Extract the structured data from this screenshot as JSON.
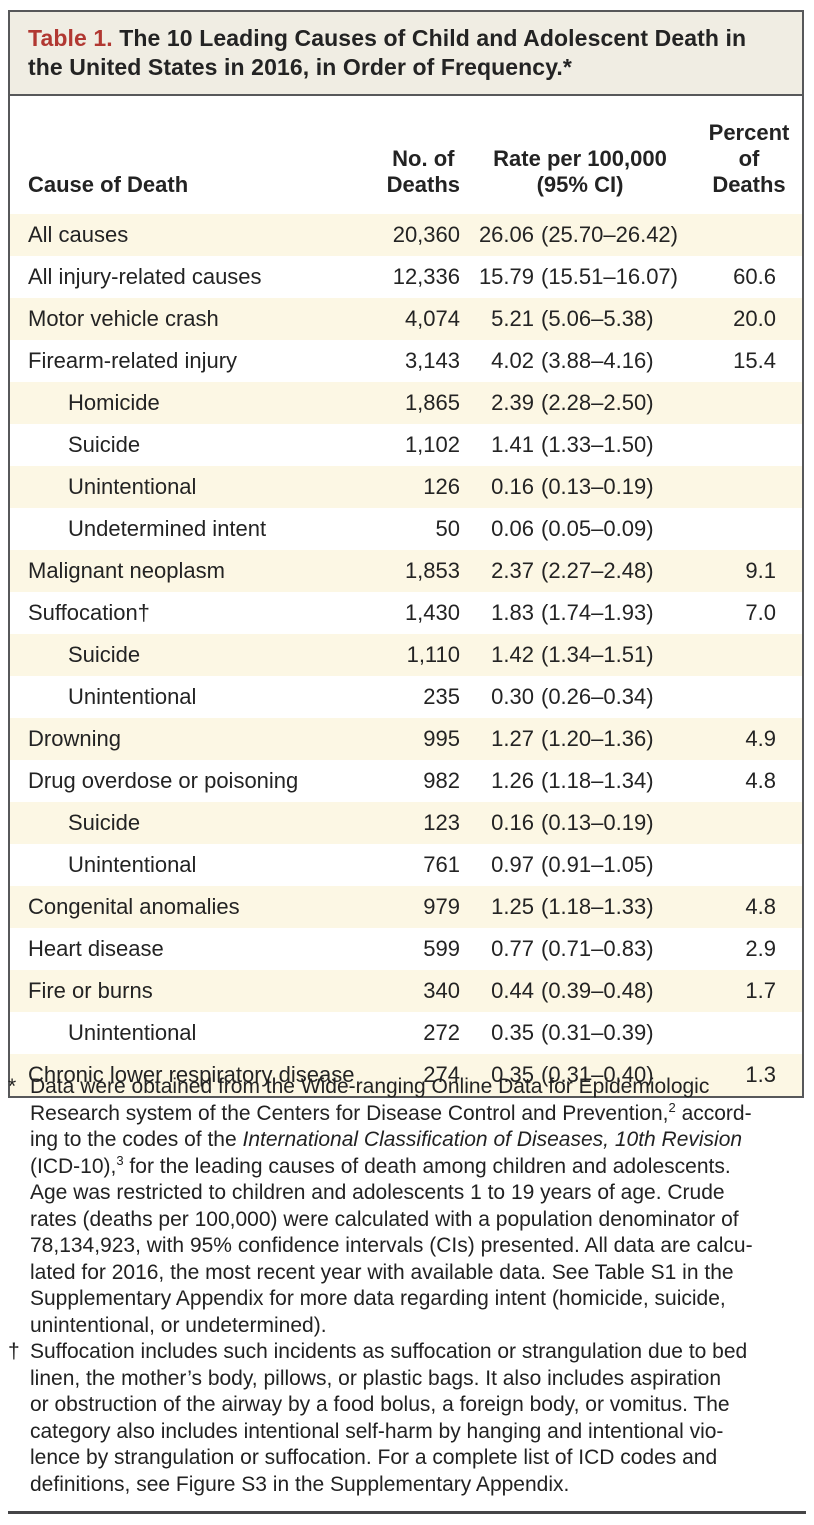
{
  "colors": {
    "accent_red": "#b13832",
    "title_bg": "#f0ede3",
    "row_stripe": "#fcf7e4",
    "border": "#57585a"
  },
  "table": {
    "label": "Table 1.",
    "title": " The 10 Leading Causes of Child and Adolescent Death in the United States in 2016, in Order of Frequency.*",
    "columns": {
      "cause": "Cause of Death",
      "deaths_line1": "No. of",
      "deaths_line2": "Deaths",
      "rate_line1": "Rate per 100,000",
      "rate_line2": "(95% CI)",
      "percent_line1": "Percent",
      "percent_line2": "of Deaths"
    },
    "rows": [
      {
        "cause": "All causes",
        "indent": false,
        "deaths": "20,360",
        "rate": "26.06",
        "ci": "(25.70–26.42)",
        "percent": ""
      },
      {
        "cause": "All injury-related causes",
        "indent": false,
        "deaths": "12,336",
        "rate": "15.79",
        "ci": "(15.51–16.07)",
        "percent": "60.6"
      },
      {
        "cause": "Motor vehicle crash",
        "indent": false,
        "deaths": "4,074",
        "rate": "5.21",
        "ci": "(5.06–5.38)",
        "percent": "20.0"
      },
      {
        "cause": "Firearm-related injury",
        "indent": false,
        "deaths": "3,143",
        "rate": "4.02",
        "ci": "(3.88–4.16)",
        "percent": "15.4"
      },
      {
        "cause": "Homicide",
        "indent": true,
        "deaths": "1,865",
        "rate": "2.39",
        "ci": "(2.28–2.50)",
        "percent": ""
      },
      {
        "cause": "Suicide",
        "indent": true,
        "deaths": "1,102",
        "rate": "1.41",
        "ci": "(1.33–1.50)",
        "percent": ""
      },
      {
        "cause": "Unintentional",
        "indent": true,
        "deaths": "126",
        "rate": "0.16",
        "ci": "(0.13–0.19)",
        "percent": ""
      },
      {
        "cause": "Undetermined intent",
        "indent": true,
        "deaths": "50",
        "rate": "0.06",
        "ci": "(0.05–0.09)",
        "percent": ""
      },
      {
        "cause": "Malignant neoplasm",
        "indent": false,
        "deaths": "1,853",
        "rate": "2.37",
        "ci": "(2.27–2.48)",
        "percent": "9.1"
      },
      {
        "cause": "Suffocation†",
        "indent": false,
        "deaths": "1,430",
        "rate": "1.83",
        "ci": "(1.74–1.93)",
        "percent": "7.0"
      },
      {
        "cause": "Suicide",
        "indent": true,
        "deaths": "1,110",
        "rate": "1.42",
        "ci": "(1.34–1.51)",
        "percent": ""
      },
      {
        "cause": "Unintentional",
        "indent": true,
        "deaths": "235",
        "rate": "0.30",
        "ci": "(0.26–0.34)",
        "percent": ""
      },
      {
        "cause": "Drowning",
        "indent": false,
        "deaths": "995",
        "rate": "1.27",
        "ci": "(1.20–1.36)",
        "percent": "4.9"
      },
      {
        "cause": "Drug overdose or poisoning",
        "indent": false,
        "deaths": "982",
        "rate": "1.26",
        "ci": "(1.18–1.34)",
        "percent": "4.8"
      },
      {
        "cause": "Suicide",
        "indent": true,
        "deaths": "123",
        "rate": "0.16",
        "ci": "(0.13–0.19)",
        "percent": ""
      },
      {
        "cause": "Unintentional",
        "indent": true,
        "deaths": "761",
        "rate": "0.97",
        "ci": "(0.91–1.05)",
        "percent": ""
      },
      {
        "cause": "Congenital anomalies",
        "indent": false,
        "deaths": "979",
        "rate": "1.25",
        "ci": "(1.18–1.33)",
        "percent": "4.8"
      },
      {
        "cause": "Heart disease",
        "indent": false,
        "deaths": "599",
        "rate": "0.77",
        "ci": "(0.71–0.83)",
        "percent": "2.9"
      },
      {
        "cause": "Fire or burns",
        "indent": false,
        "deaths": "340",
        "rate": "0.44",
        "ci": "(0.39–0.48)",
        "percent": "1.7"
      },
      {
        "cause": "Unintentional",
        "indent": true,
        "deaths": "272",
        "rate": "0.35",
        "ci": "(0.31–0.39)",
        "percent": ""
      },
      {
        "cause": "Chronic lower respiratory disease",
        "indent": false,
        "deaths": "274",
        "rate": "0.35",
        "ci": "(0.31–0.40)",
        "percent": "1.3"
      }
    ]
  },
  "footnotes": [
    {
      "marker": "*",
      "lines": [
        [
          {
            "t": "Data were obtained from the Wide-ranging Online Data for Epidemiologic"
          }
        ],
        [
          {
            "t": "Research system of the Centers for Disease Control and Prevention,"
          },
          {
            "t": "2",
            "sup": true
          },
          {
            "t": " accord-"
          }
        ],
        [
          {
            "t": "ing to the codes of the "
          },
          {
            "t": "International Classification of Diseases, 10th Revision",
            "italic": true
          }
        ],
        [
          {
            "t": "(ICD-10),"
          },
          {
            "t": "3",
            "sup": true
          },
          {
            "t": " for the leading causes of death among children and adolescents."
          }
        ],
        [
          {
            "t": "Age was restricted to children and adolescents 1 to 19 years of age. Crude"
          }
        ],
        [
          {
            "t": "rates (deaths per 100,000) were calculated with a population denominator of"
          }
        ],
        [
          {
            "t": "78,134,923, with 95% confidence intervals (CIs) presented. All data are calcu-"
          }
        ],
        [
          {
            "t": "lated for 2016, the most recent year with available data. See Table S1 in the"
          }
        ],
        [
          {
            "t": "Supplementary Appendix for more data regarding intent (homicide, suicide,"
          }
        ],
        [
          {
            "t": "unintentional, or undetermined)."
          }
        ]
      ]
    },
    {
      "marker": "†",
      "lines": [
        [
          {
            "t": "Suffocation includes such incidents as suffocation or strangulation due to bed"
          }
        ],
        [
          {
            "t": "linen, the mother’s body, pillows, or plastic bags. It also includes aspiration"
          }
        ],
        [
          {
            "t": "or obstruction of the airway by a food bolus, a foreign body, or vomitus. The"
          }
        ],
        [
          {
            "t": "category also includes intentional self-harm by hanging and intentional vio-"
          }
        ],
        [
          {
            "t": "lence by strangulation or suffocation. For a complete list of ICD codes and"
          }
        ],
        [
          {
            "t": "definitions, see Figure S3 in the Supplementary Appendix."
          }
        ]
      ]
    }
  ]
}
